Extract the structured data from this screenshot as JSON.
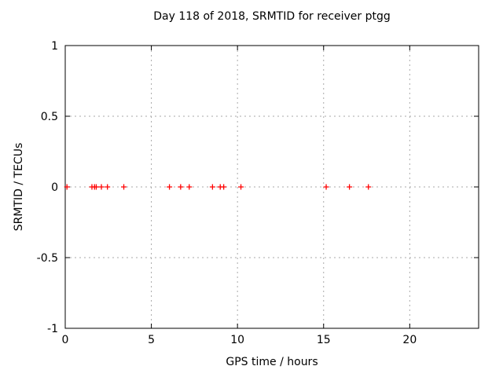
{
  "chart_data": {
    "type": "scatter",
    "title": "Day 118 of 2018, SRMTID for receiver ptgg",
    "xlabel": "GPS time / hours",
    "ylabel": "SRMTID / TECUs",
    "xlim": [
      0,
      24
    ],
    "ylim": [
      -1,
      1
    ],
    "xticks": [
      0,
      5,
      10,
      15,
      20
    ],
    "yticks": [
      -1,
      -0.5,
      0,
      0.5,
      1
    ],
    "ytick_labels": [
      "-1",
      "-0.5",
      "0",
      "0.5",
      "1"
    ],
    "xtick_labels": [
      "0",
      "5",
      "10",
      "15",
      "20"
    ],
    "grid": true,
    "legend_position": "none",
    "marker": "plus",
    "marker_color": "#ff0000",
    "grid_color": "#aaaaaa",
    "frame_color": "#000000",
    "background_color": "#ffffff",
    "series": [
      {
        "name": "SRMTID",
        "x": [
          0.1,
          1.55,
          1.7,
          1.8,
          2.1,
          2.45,
          3.4,
          6.05,
          6.7,
          7.2,
          8.55,
          9.0,
          9.2,
          10.2,
          15.15,
          16.5,
          17.6
        ],
        "y": [
          0,
          0,
          0,
          0,
          0,
          0,
          0,
          0,
          0,
          0,
          0,
          0,
          0,
          0,
          0,
          0,
          0
        ]
      }
    ]
  }
}
